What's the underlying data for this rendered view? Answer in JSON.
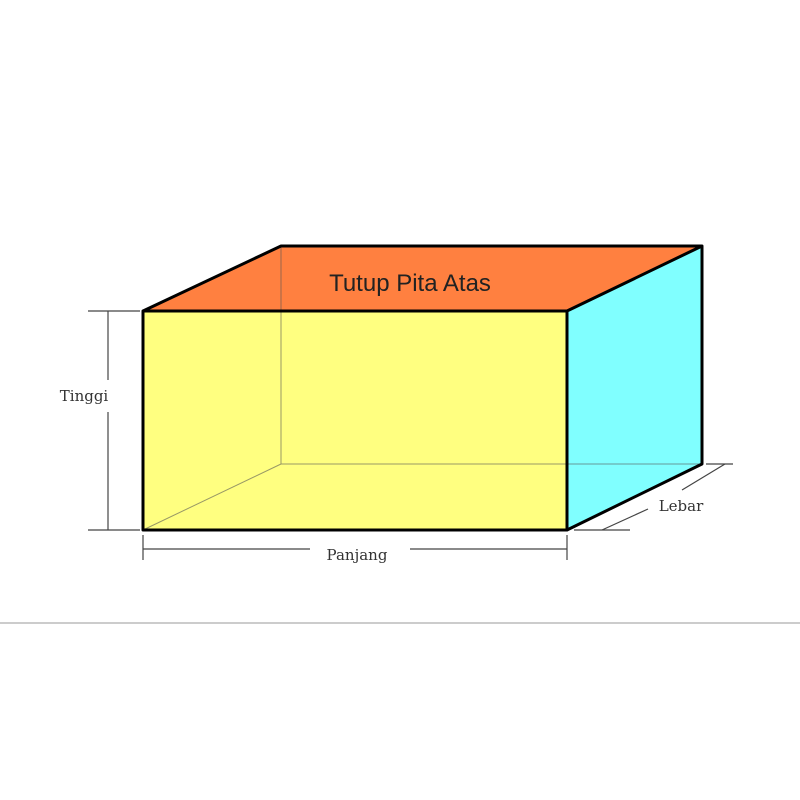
{
  "labels": {
    "top_face": "Tutup Pita Atas",
    "height": "Tinggi",
    "length": "Panjang",
    "width": "Lebar"
  },
  "colors": {
    "top_face": "#FF8040",
    "front_face": "#FFFF80",
    "side_face": "#80FFFF",
    "edge": "#000000"
  }
}
